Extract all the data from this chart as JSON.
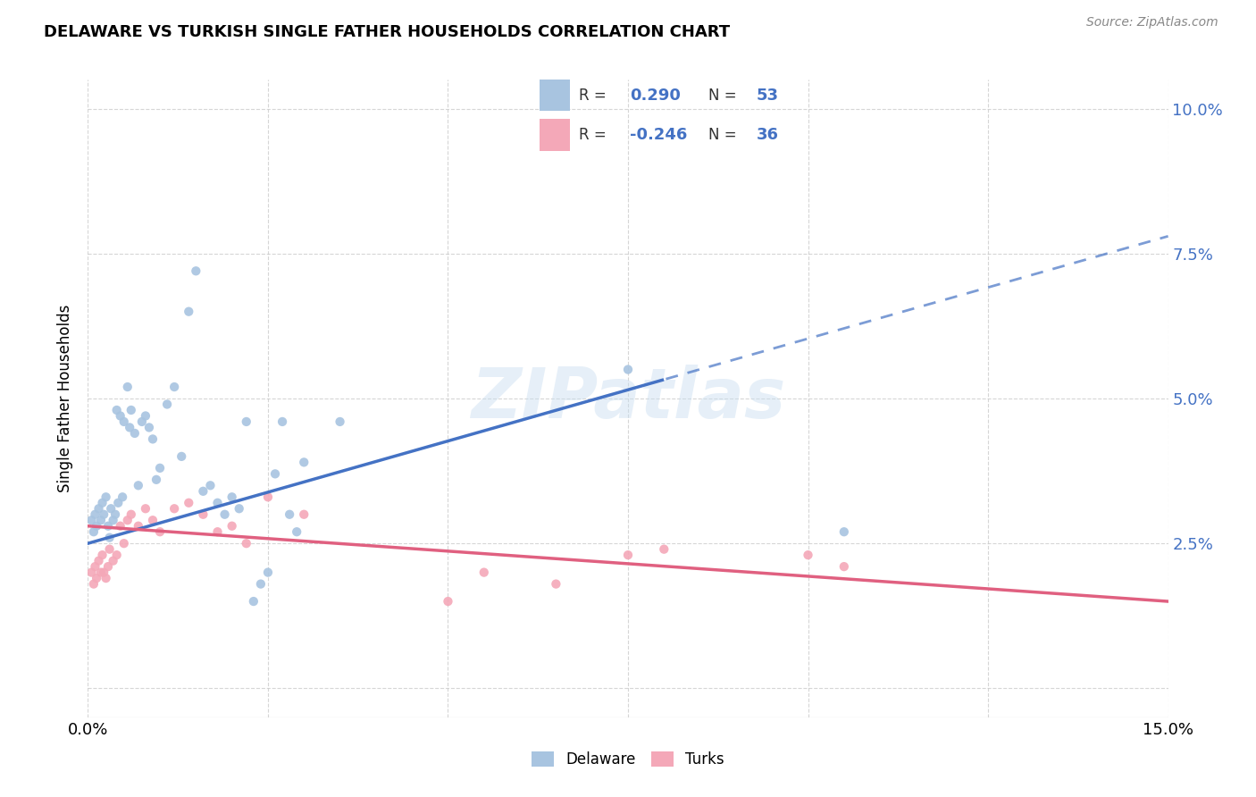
{
  "title": "DELAWARE VS TURKISH SINGLE FATHER HOUSEHOLDS CORRELATION CHART",
  "source": "Source: ZipAtlas.com",
  "ylabel": "Single Father Households",
  "watermark": "ZIPatlas",
  "xlim": [
    0.0,
    15.0
  ],
  "ylim": [
    -0.5,
    10.5
  ],
  "yticks": [
    0.0,
    2.5,
    5.0,
    7.5,
    10.0
  ],
  "ytick_labels": [
    "",
    "2.5%",
    "5.0%",
    "7.5%",
    "10.0%"
  ],
  "xticks": [
    0.0,
    2.5,
    5.0,
    7.5,
    10.0,
    12.5,
    15.0
  ],
  "xtick_labels": [
    "0.0%",
    "",
    "",
    "",
    "",
    "",
    "15.0%"
  ],
  "delaware_color": "#a8c4e0",
  "turks_color": "#f4a8b8",
  "delaware_line_color": "#4472c4",
  "turks_line_color": "#e06080",
  "delaware_R": 0.29,
  "delaware_N": 53,
  "turks_R": -0.246,
  "turks_N": 36,
  "legend_label_delaware": "Delaware",
  "legend_label_turks": "Turks",
  "background_color": "#ffffff",
  "grid_color": "#cccccc",
  "del_line_x0": 0.0,
  "del_line_y0": 2.5,
  "del_line_x1": 15.0,
  "del_line_y1": 7.8,
  "del_solid_end": 8.0,
  "turk_line_x0": 0.0,
  "turk_line_y0": 2.8,
  "turk_line_x1": 15.0,
  "turk_line_y1": 1.5,
  "delaware_x": [
    0.05,
    0.08,
    0.1,
    0.12,
    0.15,
    0.18,
    0.2,
    0.22,
    0.25,
    0.28,
    0.3,
    0.32,
    0.35,
    0.38,
    0.4,
    0.42,
    0.45,
    0.48,
    0.5,
    0.55,
    0.58,
    0.6,
    0.65,
    0.7,
    0.75,
    0.8,
    0.85,
    0.9,
    0.95,
    1.0,
    1.1,
    1.2,
    1.3,
    1.4,
    1.5,
    1.6,
    1.7,
    1.8,
    1.9,
    2.0,
    2.1,
    2.2,
    2.3,
    2.4,
    2.5,
    2.6,
    2.7,
    2.8,
    2.9,
    3.0,
    3.5,
    7.5,
    10.5
  ],
  "delaware_y": [
    2.9,
    2.7,
    3.0,
    2.8,
    3.1,
    2.9,
    3.2,
    3.0,
    3.3,
    2.8,
    2.6,
    3.1,
    2.9,
    3.0,
    4.8,
    3.2,
    4.7,
    3.3,
    4.6,
    5.2,
    4.5,
    4.8,
    4.4,
    3.5,
    4.6,
    4.7,
    4.5,
    4.3,
    3.6,
    3.8,
    4.9,
    5.2,
    4.0,
    6.5,
    7.2,
    3.4,
    3.5,
    3.2,
    3.0,
    3.3,
    3.1,
    4.6,
    1.5,
    1.8,
    2.0,
    3.7,
    4.6,
    3.0,
    2.7,
    3.9,
    4.6,
    5.5,
    2.7
  ],
  "turks_x": [
    0.05,
    0.08,
    0.1,
    0.12,
    0.15,
    0.18,
    0.2,
    0.22,
    0.25,
    0.28,
    0.3,
    0.35,
    0.4,
    0.45,
    0.5,
    0.55,
    0.6,
    0.7,
    0.8,
    0.9,
    1.0,
    1.2,
    1.4,
    1.6,
    1.8,
    2.0,
    2.2,
    2.5,
    3.0,
    5.5,
    7.5,
    10.5,
    8.0,
    10.0,
    6.5,
    5.0
  ],
  "turks_y": [
    2.0,
    1.8,
    2.1,
    1.9,
    2.2,
    2.0,
    2.3,
    2.0,
    1.9,
    2.1,
    2.4,
    2.2,
    2.3,
    2.8,
    2.5,
    2.9,
    3.0,
    2.8,
    3.1,
    2.9,
    2.7,
    3.1,
    3.2,
    3.0,
    2.7,
    2.8,
    2.5,
    3.3,
    3.0,
    2.0,
    2.3,
    2.1,
    2.4,
    2.3,
    1.8,
    1.5
  ]
}
